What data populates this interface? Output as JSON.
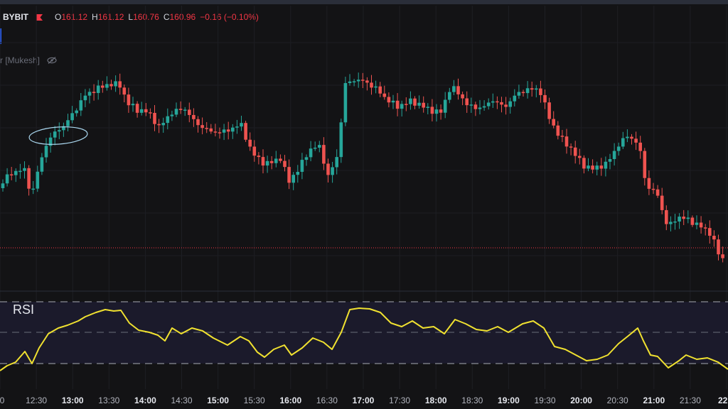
{
  "header": {
    "symbol": "BYBIT",
    "open_label": "O",
    "open": "161.12",
    "high_label": "H",
    "high": "161.12",
    "low_label": "L",
    "low": "160.76",
    "close_label": "C",
    "close": "160.96",
    "change": "−0.16 (−0.10%)",
    "indicator": "r [Mukesh]"
  },
  "rsi": {
    "label": "RSI"
  },
  "colors": {
    "up": "#26a69a",
    "down": "#ef5350",
    "rsi": "#f0e130",
    "background": "#131315"
  },
  "icons": [
    "flag-icon",
    "eye-off-icon"
  ],
  "time_axis": {
    "ticks": [
      {
        "label": "0",
        "bold": false
      },
      {
        "label": "12:30",
        "bold": false
      },
      {
        "label": "13:00",
        "bold": true
      },
      {
        "label": "13:30",
        "bold": false
      },
      {
        "label": "14:00",
        "bold": true
      },
      {
        "label": "14:30",
        "bold": false
      },
      {
        "label": "15:00",
        "bold": true
      },
      {
        "label": "15:30",
        "bold": false
      },
      {
        "label": "16:00",
        "bold": true
      },
      {
        "label": "16:30",
        "bold": false
      },
      {
        "label": "17:00",
        "bold": true
      },
      {
        "label": "17:30",
        "bold": false
      },
      {
        "label": "18:00",
        "bold": true
      },
      {
        "label": "18:30",
        "bold": false
      },
      {
        "label": "19:00",
        "bold": true
      },
      {
        "label": "19:30",
        "bold": false
      },
      {
        "label": "20:00",
        "bold": true
      },
      {
        "label": "20:30",
        "bold": false
      },
      {
        "label": "21:00",
        "bold": true
      },
      {
        "label": "21:30",
        "bold": false
      },
      {
        "label": "22:0",
        "bold": true
      }
    ]
  }
}
